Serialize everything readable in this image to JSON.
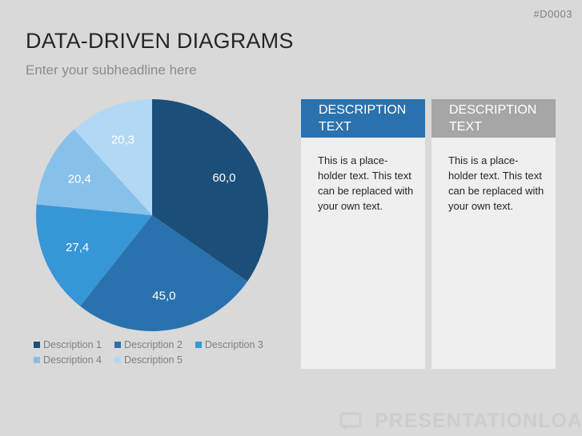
{
  "slide_code": "#D0003",
  "title": "DATA-DRIVEN DIAGRAMS",
  "subtitle": "Enter your subheadline here",
  "watermark": "PRESENTATIONLOAD",
  "chart_data": {
    "type": "pie",
    "categories": [
      "Description 1",
      "Description 2",
      "Description 3",
      "Description 4",
      "Description 5"
    ],
    "values": [
      60.0,
      45.0,
      27.4,
      20.4,
      20.3
    ],
    "labels": [
      "60,0",
      "45,0",
      "27,4",
      "20,4",
      "20,3"
    ],
    "colors": [
      "#1b4f7a",
      "#2a72ae",
      "#3796d6",
      "#87c1ea",
      "#b3d8f3"
    ],
    "legend_position": "bottom"
  },
  "cards": [
    {
      "header": "DESCRIPTION TEXT",
      "header_color": "#2a72ae",
      "body": "This is a place-holder text. This text can be replaced with your own text."
    },
    {
      "header": "DESCRIPTION TEXT",
      "header_color": "#a6a6a6",
      "body": "This is a place-holder text. This text can be replaced with your own text."
    }
  ]
}
